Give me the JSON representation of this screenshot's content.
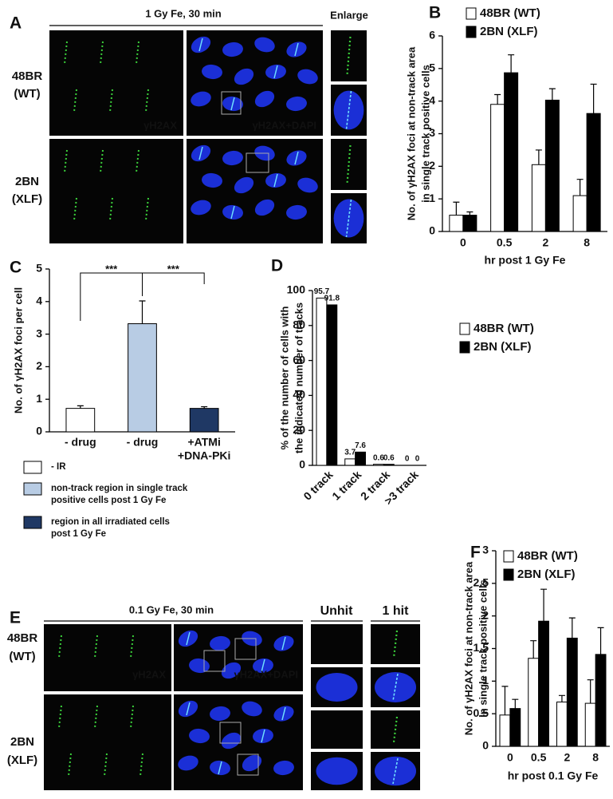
{
  "figure": {
    "panel_labels": [
      "A",
      "B",
      "C",
      "D",
      "E",
      "F"
    ],
    "panel_a": {
      "title": "1 Gy Fe, 30 min",
      "enlarge": "Enlarge",
      "rows": [
        [
          "48BR",
          "(WT)"
        ],
        [
          "2BN",
          "(XLF)"
        ]
      ],
      "stains": [
        "γH2AX",
        "γH2AX+DAPI"
      ]
    },
    "panel_e": {
      "title": "0.1 Gy Fe, 30 min",
      "columns": [
        "Unhit",
        "1 hit"
      ],
      "rows": [
        [
          "48BR",
          "(WT)"
        ],
        [
          "2BN",
          "(XLF)"
        ]
      ],
      "stains": [
        "γH2AX",
        "γH2AX+DAPI"
      ]
    }
  },
  "chart_data": [
    {
      "type": "bar",
      "ylabel": [
        "No. of γH2AX foci at non-track area",
        "in single track positive cells"
      ],
      "xlabel": "hr post 1 Gy Fe",
      "categories": [
        "0",
        "0.5",
        "2",
        "8"
      ],
      "series": [
        {
          "name": "48BR (WT)",
          "color": "#ffffff",
          "values": [
            0.5,
            3.9,
            2.05,
            1.1
          ],
          "errors": [
            0.4,
            0.3,
            0.45,
            0.5
          ]
        },
        {
          "name": "2BN (XLF)",
          "color": "#000000",
          "values": [
            0.5,
            4.87,
            4.03,
            3.62
          ],
          "errors": [
            0.1,
            0.55,
            0.35,
            0.9
          ]
        }
      ],
      "ylim": [
        0,
        6
      ],
      "yticks": [
        0,
        1,
        2,
        3,
        4,
        5,
        6
      ]
    },
    {
      "type": "bar",
      "ylabel": [
        "No. of γH2AX foci per cell"
      ],
      "categories": [
        [
          "- drug"
        ],
        [
          "- drug"
        ],
        [
          "+ATMi",
          "+DNA-PKi"
        ]
      ],
      "values": [
        0.72,
        3.32,
        0.72
      ],
      "errors": [
        0.08,
        0.7,
        0.05
      ],
      "colors": [
        "#ffffff",
        "#b8cce4",
        "#1f3864"
      ],
      "annotations": [
        "***",
        "***"
      ],
      "legend": [
        {
          "label": [
            "- IR"
          ]
        },
        {
          "label": [
            "non-track region in single track",
            "positive cells post 1 Gy Fe"
          ]
        },
        {
          "label": [
            "region in all irradiated cells",
            "post 1 Gy Fe"
          ]
        }
      ],
      "ylim": [
        0,
        5
      ],
      "yticks": [
        0,
        1,
        2,
        3,
        4,
        5
      ]
    },
    {
      "type": "bar",
      "ylabel": [
        "% of the number of cells with",
        "the indicated number of tracks"
      ],
      "categories": [
        "0 track",
        "1 track",
        "2 track",
        ">3 track"
      ],
      "series": [
        {
          "name": "48BR (WT)",
          "color": "#ffffff",
          "values": [
            95.7,
            3.7,
            0.6,
            0
          ]
        },
        {
          "name": "2BN (XLF)",
          "color": "#000000",
          "values": [
            91.8,
            7.6,
            0.6,
            0
          ]
        }
      ],
      "ylim": [
        0,
        100
      ],
      "yticks": [
        0,
        20,
        40,
        60,
        80,
        100
      ]
    },
    {
      "type": "bar",
      "ylabel": [
        "No. of γH2AX foci at non-track area",
        "in single track positive cells"
      ],
      "xlabel": "hr post 0.1 Gy Fe",
      "categories": [
        "0",
        "0.5",
        "2",
        "8"
      ],
      "series": [
        {
          "name": "48BR (WT)",
          "color": "#ffffff",
          "values": [
            0.48,
            1.35,
            0.68,
            0.66
          ],
          "errors": [
            0.44,
            0.27,
            0.1,
            0.36
          ]
        },
        {
          "name": "2BN (XLF)",
          "color": "#000000",
          "values": [
            0.58,
            1.92,
            1.66,
            1.41
          ],
          "errors": [
            0.14,
            0.49,
            0.31,
            0.41
          ]
        }
      ],
      "ylim": [
        0,
        3
      ],
      "yticks": [
        0,
        0.5,
        1,
        1.5,
        2,
        2.5,
        3
      ]
    }
  ]
}
